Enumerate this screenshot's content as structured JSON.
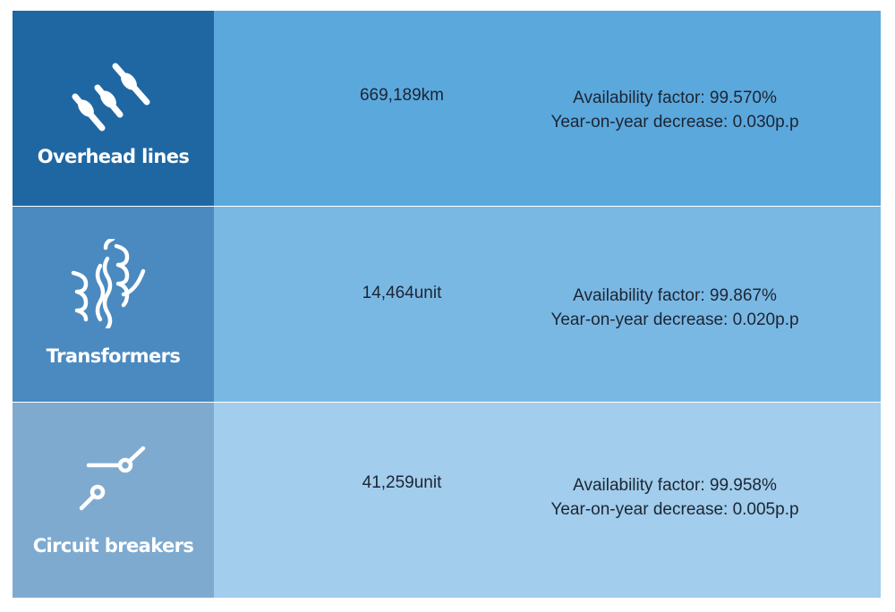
{
  "rows": [
    {
      "category": "Overhead lines",
      "icon": "overhead-lines-icon",
      "quantity": "669,189km",
      "availability": "Availability factor: 99.570%",
      "change": "Year-on-year decrease: 0.030p.p",
      "colors": {
        "category_bg": "#1f67a2",
        "body_bg": "#5ba8dd"
      }
    },
    {
      "category": "Transformers",
      "icon": "transformer-icon",
      "quantity": "14,464unit",
      "availability": "Availability factor: 99.867%",
      "change": "Year-on-year decrease: 0.020p.p",
      "colors": {
        "category_bg": "#4a8ac0",
        "body_bg": "#7ab8e4"
      }
    },
    {
      "category": "Circuit breakers",
      "icon": "circuit-breaker-icon",
      "quantity": "41,259unit",
      "availability": "Availability factor: 99.958%",
      "change": "Year-on-year decrease: 0.005p.p",
      "colors": {
        "category_bg": "#7eaad0",
        "body_bg": "#a2cdec"
      }
    }
  ]
}
